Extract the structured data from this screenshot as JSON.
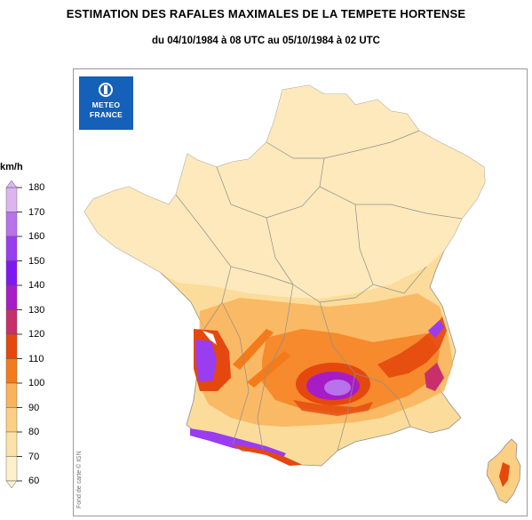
{
  "title": "ESTIMATION DES RAFALES MAXIMALES DE LA TEMPETE HORTENSE",
  "subtitle": "du 04/10/1984 à 08 UTC au 05/10/1984 à 02 UTC",
  "logo": {
    "line1": "METEO",
    "line2": "FRANCE",
    "color": "#1560b8"
  },
  "credit": "Fond de carte © IGN",
  "legend": {
    "unit": "km/h",
    "ticks": [
      180,
      170,
      160,
      150,
      140,
      130,
      120,
      110,
      100,
      90,
      80,
      70,
      60
    ],
    "colors": [
      "#dcb4f0",
      "#b872ea",
      "#9a3cf0",
      "#7f17f4",
      "#a71cc7",
      "#c7306b",
      "#e5480e",
      "#f47b1a",
      "#f9b35a",
      "#fbcf84",
      "#fce2a7",
      "#fdf0cb"
    ]
  }
}
